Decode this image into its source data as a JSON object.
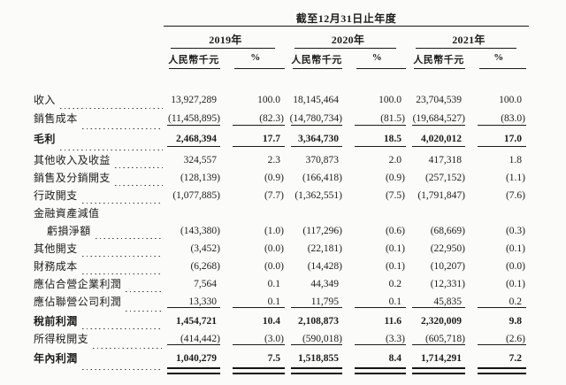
{
  "page": {
    "background": "#fbfbf9",
    "text_color": "#1c1c1c"
  },
  "table": {
    "period_header": "截至12月31日止年度",
    "years": [
      "2019年",
      "2020年",
      "2021年"
    ],
    "column_headers": {
      "amount": "人民幣千元",
      "percent": "%"
    },
    "rows": [
      {
        "label": "收入",
        "leader": true,
        "bold": false,
        "indent": false,
        "rule": "none",
        "values": [
          "13,927,289",
          "100.0",
          "18,145,464",
          "100.0",
          "23,704,539",
          "100.0"
        ]
      },
      {
        "label": "銷售成本",
        "leader": true,
        "bold": false,
        "indent": false,
        "rule": "single",
        "values": [
          "(11,458,895)",
          "(82.3)",
          "(14,780,734)",
          "(81.5)",
          "(19,684,527)",
          "(83.0)"
        ]
      },
      {
        "label": "毛利",
        "leader": true,
        "bold": true,
        "indent": false,
        "rule": "single",
        "values": [
          "2,468,394",
          "17.7",
          "3,364,730",
          "18.5",
          "4,020,012",
          "17.0"
        ]
      },
      {
        "label": "其他收入及收益",
        "leader": true,
        "bold": false,
        "indent": false,
        "rule": "none",
        "values": [
          "324,557",
          "2.3",
          "370,873",
          "2.0",
          "417,318",
          "1.8"
        ]
      },
      {
        "label": "銷售及分銷開支",
        "leader": true,
        "bold": false,
        "indent": false,
        "rule": "none",
        "values": [
          "(128,139)",
          "(0.9)",
          "(166,418)",
          "(0.9)",
          "(257,152)",
          "(1.1)"
        ]
      },
      {
        "label": "行政開支",
        "leader": true,
        "bold": false,
        "indent": false,
        "rule": "none",
        "values": [
          "(1,077,885)",
          "(7.7)",
          "(1,362,551)",
          "(7.5)",
          "(1,791,847)",
          "(7.6)"
        ]
      },
      {
        "label": "金融資產減值",
        "leader": false,
        "bold": false,
        "indent": false,
        "rule": "none",
        "values": null
      },
      {
        "label": "虧損淨額",
        "leader": true,
        "bold": false,
        "indent": true,
        "rule": "none",
        "values": [
          "(143,380)",
          "(1.0)",
          "(117,296)",
          "(0.6)",
          "(68,669)",
          "(0.3)"
        ]
      },
      {
        "label": "其他開支",
        "leader": true,
        "bold": false,
        "indent": false,
        "rule": "none",
        "values": [
          "(3,452)",
          "(0.0)",
          "(22,181)",
          "(0.1)",
          "(22,950)",
          "(0.1)"
        ]
      },
      {
        "label": "財務成本",
        "leader": true,
        "bold": false,
        "indent": false,
        "rule": "none",
        "values": [
          "(6,268)",
          "(0.0)",
          "(14,428)",
          "(0.1)",
          "(10,207)",
          "(0.0)"
        ]
      },
      {
        "label": "應佔合營企業利潤",
        "leader": true,
        "bold": false,
        "indent": false,
        "rule": "none",
        "values": [
          "7,564",
          "0.1",
          "44,349",
          "0.2",
          "(12,331)",
          "(0.1)"
        ]
      },
      {
        "label": "應佔聯營公司利潤",
        "leader": true,
        "bold": false,
        "indent": false,
        "rule": "single",
        "values": [
          "13,330",
          "0.1",
          "11,795",
          "0.1",
          "45,835",
          "0.2"
        ]
      },
      {
        "label": "稅前利潤",
        "leader": true,
        "bold": true,
        "indent": false,
        "rule": "none",
        "values": [
          "1,454,721",
          "10.4",
          "2,108,873",
          "11.6",
          "2,320,009",
          "9.8"
        ]
      },
      {
        "label": "所得稅開支",
        "leader": true,
        "bold": false,
        "indent": false,
        "rule": "single",
        "values": [
          "(414,442)",
          "(3.0)",
          "(590,018)",
          "(3.3)",
          "(605,718)",
          "(2.6)"
        ]
      },
      {
        "label": "年內利潤",
        "leader": true,
        "bold": true,
        "indent": false,
        "rule": "double",
        "values": [
          "1,040,279",
          "7.5",
          "1,518,855",
          "8.4",
          "1,714,291",
          "7.2"
        ]
      }
    ]
  }
}
